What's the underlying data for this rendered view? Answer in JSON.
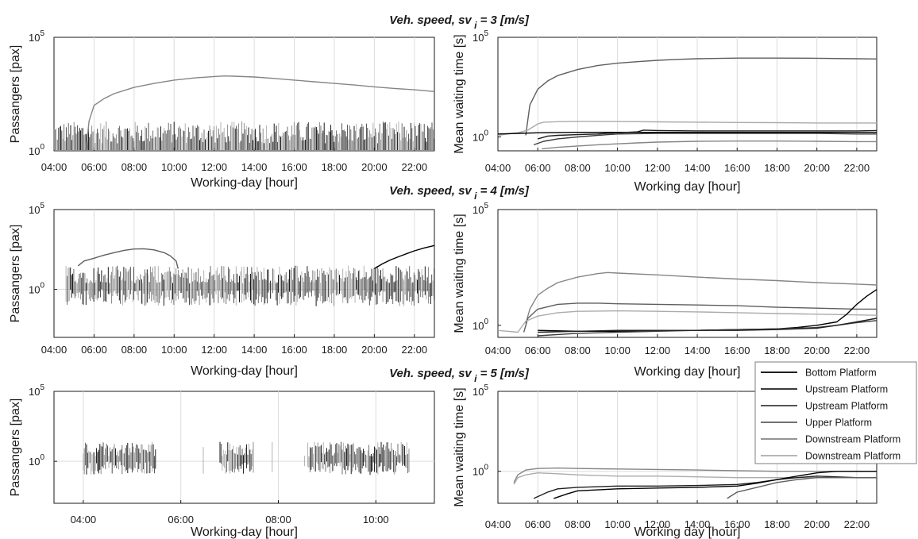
{
  "titles": [
    "Veh. speed, sv",
    "Veh. speed, sv",
    "Veh. speed, sv"
  ],
  "title_sub": "i",
  "title_values": [
    "= 3 [m/s]",
    "= 4 [m/s]",
    "= 5 [m/s]"
  ],
  "legend": {
    "entries": [
      {
        "label": "Bottom Platform",
        "color": "#000000"
      },
      {
        "label": "Upstream Platform",
        "color": "#1f1f1f"
      },
      {
        "label": "Upstream Platform",
        "color": "#3d3d3d"
      },
      {
        "label": "Upper Platform",
        "color": "#5e5e5e"
      },
      {
        "label": "Downstream Platform",
        "color": "#858585"
      },
      {
        "label": "Downstream Platform",
        "color": "#ababab"
      }
    ]
  },
  "chart_data": [
    {
      "type": "line",
      "panel": "left",
      "row": 1,
      "ylabel": "Passangers [pax]",
      "xlabel": "Working-day [hour]",
      "yscale": "log",
      "ylim": [
        1,
        100000
      ],
      "ytick_labels": [
        "10",
        "10"
      ],
      "ytick_exps": [
        "0",
        "5"
      ],
      "xlim": [
        4,
        23
      ],
      "xtick_values": [
        4,
        6,
        8,
        10,
        12,
        14,
        16,
        18,
        20,
        22
      ],
      "xtick_labels": [
        "04:00",
        "06:00",
        "08:00",
        "10:00",
        "12:00",
        "14:00",
        "16:00",
        "18:00",
        "20:00",
        "22:00"
      ],
      "grid": "vertical",
      "series": [
        {
          "color": "#858585",
          "x": [
            5.6,
            5.75,
            6.0,
            6.5,
            7.0,
            8.0,
            9.0,
            10.0,
            11.0,
            12.0,
            12.5,
            13.0,
            14.0,
            15.0,
            16.0,
            17.0,
            18.0,
            19.0,
            20.0,
            21.0,
            22.0,
            23.0
          ],
          "y": [
            1,
            20,
            100,
            200,
            330,
            620,
            930,
            1300,
            1620,
            1880,
            1980,
            1940,
            1780,
            1550,
            1300,
            1100,
            930,
            790,
            660,
            560,
            490,
            410
          ]
        }
      ],
      "noise": {
        "x_start": 4.0,
        "x_end": 23.0,
        "level": 1,
        "amplitude_decades": 1.3,
        "below": false
      }
    },
    {
      "type": "line",
      "panel": "right",
      "row": 1,
      "ylabel": "Mean waiting time [s]",
      "xlabel": "Working day [hour]",
      "yscale": "log",
      "ylim": [
        0.2,
        100000
      ],
      "ytick_labels": [
        "10",
        "10"
      ],
      "ytick_exps": [
        "0",
        "5"
      ],
      "xlim": [
        4,
        23
      ],
      "xtick_values": [
        4,
        6,
        8,
        10,
        12,
        14,
        16,
        18,
        20,
        22
      ],
      "xtick_labels": [
        "04:00",
        "06:00",
        "08:00",
        "10:00",
        "12:00",
        "14:00",
        "16:00",
        "18:00",
        "20:00",
        "22:00"
      ],
      "grid": "vertical",
      "series": [
        {
          "color": "#5e5e5e",
          "x": [
            5.4,
            5.6,
            6.0,
            6.5,
            7.0,
            8.0,
            9.0,
            10.0,
            11.0,
            12.0,
            13.0,
            14.0,
            16.0,
            18.0,
            20.0,
            22.0,
            23.0
          ],
          "y": [
            1.2,
            40,
            250,
            650,
            1200,
            2400,
            3800,
            5000,
            6000,
            7000,
            7800,
            8400,
            9000,
            9000,
            8900,
            8400,
            8200
          ]
        },
        {
          "color": "#ababab",
          "x": [
            4.0,
            5.0,
            5.5,
            6.0,
            6.3,
            7.0,
            8.0,
            10.0,
            12.0,
            14.0,
            16.0,
            18.0,
            20.0,
            22.0,
            23.0
          ],
          "y": [
            1.2,
            1.6,
            2.2,
            4.5,
            5.5,
            5.8,
            6.0,
            5.9,
            5.7,
            5.5,
            5.3,
            5.2,
            5.0,
            5.0,
            5.0
          ]
        },
        {
          "color": "#1f1f1f",
          "x": [
            6.0,
            6.5,
            7.0,
            8.0,
            9.0,
            10.0,
            11.0,
            11.3,
            12.0,
            14.0,
            16.0,
            18.0,
            20.0,
            22.0,
            23.0
          ],
          "y": [
            0.8,
            1.1,
            1.2,
            1.3,
            1.4,
            1.6,
            1.8,
            2.2,
            2.1,
            2.0,
            2.0,
            2.0,
            2.0,
            2.0,
            2.1
          ]
        },
        {
          "color": "#3d3d3d",
          "x": [
            5.8,
            6.3,
            7.0,
            8.0,
            9.0,
            10.0,
            12.0,
            14.0,
            16.0,
            18.0,
            20.0,
            22.0,
            23.0
          ],
          "y": [
            0.4,
            0.6,
            0.8,
            1.0,
            1.2,
            1.4,
            1.5,
            1.5,
            1.5,
            1.5,
            1.5,
            1.4,
            1.4
          ]
        },
        {
          "color": "#858585",
          "x": [
            6.2,
            7.0,
            8.0,
            9.0,
            10.0,
            11.0,
            12.0,
            14.0,
            16.0,
            18.0,
            20.0,
            22.0,
            23.0
          ],
          "y": [
            0.25,
            0.3,
            0.35,
            0.4,
            0.45,
            0.5,
            0.55,
            0.6,
            0.62,
            0.62,
            0.6,
            0.58,
            0.58
          ]
        },
        {
          "color": "#000000",
          "x": [
            4.0,
            5.0,
            6.0,
            8.0,
            10.0,
            12.0,
            14.0,
            16.0,
            18.0,
            20.0,
            22.0,
            23.0
          ],
          "y": [
            1.4,
            1.5,
            1.6,
            1.7,
            1.7,
            1.7,
            1.7,
            1.7,
            1.7,
            1.7,
            1.7,
            1.7
          ]
        }
      ]
    },
    {
      "type": "line",
      "panel": "left",
      "row": 2,
      "ylabel": "Passangers [pax]",
      "xlabel": "Working-day [hour]",
      "yscale": "log",
      "ylim": [
        0.001,
        100000
      ],
      "ytick_labels": [
        "10",
        "10"
      ],
      "ytick_exps": [
        "0",
        "5"
      ],
      "xlim": [
        4,
        23
      ],
      "xtick_values": [
        4,
        6,
        8,
        10,
        12,
        14,
        16,
        18,
        20,
        22
      ],
      "xtick_labels": [
        "04:00",
        "06:00",
        "08:00",
        "10:00",
        "12:00",
        "14:00",
        "16:00",
        "18:00",
        "20:00",
        "22:00"
      ],
      "grid": "both",
      "series": [
        {
          "color": "#5e5e5e",
          "x": [
            5.2,
            5.5,
            6.0,
            6.5,
            7.0,
            7.5,
            8.0,
            8.5,
            9.0,
            9.5,
            9.8,
            10.1,
            10.2
          ],
          "y": [
            30,
            60,
            90,
            140,
            200,
            280,
            340,
            350,
            300,
            200,
            130,
            60,
            20
          ]
        },
        {
          "color": "#000000",
          "x": [
            20.0,
            20.4,
            20.8,
            21.2,
            21.6,
            22.0,
            22.5,
            23.0
          ],
          "y": [
            20,
            40,
            70,
            110,
            170,
            260,
            400,
            560
          ]
        }
      ],
      "noise": {
        "x_start": 4.6,
        "x_end": 23.0,
        "level": 1,
        "amplitude_decades": 1.5,
        "below": true
      }
    },
    {
      "type": "line",
      "panel": "right",
      "row": 2,
      "ylabel": "Mean waiting time [s]",
      "xlabel": "Working day [hour]",
      "yscale": "log",
      "ylim": [
        0.3,
        100000
      ],
      "ytick_labels": [
        "10",
        "10"
      ],
      "ytick_exps": [
        "0",
        "5"
      ],
      "xlim": [
        4,
        23
      ],
      "xtick_values": [
        4,
        6,
        8,
        10,
        12,
        14,
        16,
        18,
        20,
        22
      ],
      "xtick_labels": [
        "04:00",
        "06:00",
        "08:00",
        "10:00",
        "12:00",
        "14:00",
        "16:00",
        "18:00",
        "20:00",
        "22:00"
      ],
      "grid": "vertical",
      "series": [
        {
          "color": "#858585",
          "x": [
            5.4,
            5.6,
            6.0,
            6.5,
            7.0,
            8.0,
            9.0,
            9.5,
            10.0,
            12.0,
            14.0,
            16.0,
            18.0,
            20.0,
            22.0,
            23.0
          ],
          "y": [
            1.2,
            5,
            20,
            40,
            70,
            120,
            170,
            190,
            180,
            150,
            120,
            100,
            85,
            70,
            60,
            55
          ]
        },
        {
          "color": "#5e5e5e",
          "x": [
            5.3,
            5.5,
            6.0,
            7.0,
            8.0,
            9.0,
            10.0,
            12.0,
            14.0,
            16.0,
            18.0,
            20.0,
            22.0,
            23.0
          ],
          "y": [
            0.5,
            2,
            5,
            8,
            9,
            9,
            8.5,
            8,
            7.5,
            7,
            6,
            5.5,
            5,
            5
          ]
        },
        {
          "color": "#ababab",
          "x": [
            4.0,
            5.0,
            5.4,
            6.0,
            7.0,
            8.0,
            10.0,
            12.0,
            14.0,
            16.0,
            18.0,
            20.0,
            22.0,
            23.0
          ],
          "y": [
            0.6,
            0.5,
            1.5,
            2.5,
            3.5,
            4,
            4.2,
            4,
            3.8,
            3.5,
            3.2,
            3,
            2.8,
            2.7
          ]
        },
        {
          "color": "#000000",
          "x": [
            6.0,
            8.0,
            10.0,
            12.0,
            14.0,
            16.0,
            18.0,
            19.0,
            20.0,
            21.0,
            21.5,
            22.0,
            22.5,
            23.0
          ],
          "y": [
            0.6,
            0.55,
            0.55,
            0.6,
            0.6,
            0.65,
            0.7,
            0.8,
            1.0,
            1.4,
            3,
            8,
            18,
            35
          ]
        },
        {
          "color": "#3d3d3d",
          "x": [
            6.0,
            7.0,
            8.0,
            10.0,
            12.0,
            14.0,
            16.0,
            18.0,
            20.0,
            21.0,
            22.0,
            23.0
          ],
          "y": [
            0.35,
            0.4,
            0.45,
            0.5,
            0.55,
            0.6,
            0.65,
            0.7,
            0.8,
            1.0,
            1.3,
            1.6
          ]
        },
        {
          "color": "#1f1f1f",
          "x": [
            6.0,
            8.0,
            10.0,
            12.0,
            14.0,
            16.0,
            18.0,
            20.0,
            21.0,
            22.0,
            23.0
          ],
          "y": [
            0.5,
            0.55,
            0.6,
            0.6,
            0.6,
            0.6,
            0.65,
            0.75,
            1.0,
            1.4,
            2.0
          ]
        }
      ]
    },
    {
      "type": "line",
      "panel": "left",
      "row": 3,
      "ylabel": "Passangers [pax]",
      "xlabel": "Working-day [hour]",
      "yscale": "log",
      "ylim": [
        0.001,
        100000
      ],
      "ytick_labels": [
        "10",
        "10"
      ],
      "ytick_exps": [
        "0",
        "5"
      ],
      "xlim": [
        3.4,
        11.2
      ],
      "xtick_values": [
        4,
        6,
        8,
        10
      ],
      "xtick_labels": [
        "04:00",
        "06:00",
        "08:00",
        "10:00"
      ],
      "grid": "both",
      "series": [],
      "noise": {
        "x_start": 4.0,
        "x_end": 10.7,
        "level": 1,
        "amplitude_decades": 1.4,
        "below": true,
        "gaps": [
          [
            5.5,
            6.8
          ],
          [
            7.5,
            8.6
          ]
        ]
      }
    },
    {
      "type": "line",
      "panel": "right",
      "row": 3,
      "ylabel": "Mean waiting time [s]",
      "xlabel": "Working day [hour]",
      "yscale": "log",
      "ylim": [
        0.01,
        100000
      ],
      "ytick_labels": [
        "10",
        "10"
      ],
      "ytick_exps": [
        "0",
        "5"
      ],
      "xlim": [
        4,
        23
      ],
      "xtick_values": [
        4,
        6,
        8,
        10,
        12,
        14,
        16,
        18,
        20,
        22
      ],
      "xtick_labels": [
        "04:00",
        "06:00",
        "08:00",
        "10:00",
        "12:00",
        "14:00",
        "16:00",
        "18:00",
        "20:00",
        "22:00"
      ],
      "grid": "both",
      "series": [
        {
          "color": "#858585",
          "x": [
            4.8,
            5.0,
            5.4,
            6.0,
            7.0,
            8.0,
            10.0,
            12.0,
            14.0,
            16.0,
            18.0,
            20.0,
            22.0,
            23.0
          ],
          "y": [
            0.2,
            0.6,
            1.2,
            1.5,
            1.6,
            1.5,
            1.4,
            1.3,
            1.2,
            1.1,
            1.0,
            1.0,
            1.0,
            1.0
          ]
        },
        {
          "color": "#ababab",
          "x": [
            4.8,
            5.0,
            5.4,
            6.0,
            7.0,
            8.0,
            10.0,
            12.0,
            14.0,
            16.0,
            18.0,
            20.0,
            22.0,
            23.0
          ],
          "y": [
            0.15,
            0.4,
            0.6,
            0.8,
            0.7,
            0.6,
            0.5,
            0.5,
            0.45,
            0.4,
            0.4,
            0.4,
            0.4,
            0.4
          ]
        },
        {
          "color": "#1f1f1f",
          "x": [
            5.8,
            6.5,
            7.0,
            8.0,
            10.0,
            12.0,
            14.0,
            16.0,
            17.0,
            18.0,
            19.0,
            20.0,
            22.0,
            23.0
          ],
          "y": [
            0.02,
            0.05,
            0.08,
            0.1,
            0.12,
            0.12,
            0.13,
            0.15,
            0.2,
            0.3,
            0.4,
            0.5,
            0.4,
            0.4
          ]
        },
        {
          "color": "#000000",
          "x": [
            6.8,
            7.5,
            8.0,
            10.0,
            12.0,
            14.0,
            16.0,
            17.0,
            18.0,
            19.0,
            20.0,
            21.0,
            22.0,
            23.0
          ],
          "y": [
            0.02,
            0.04,
            0.06,
            0.08,
            0.09,
            0.1,
            0.12,
            0.18,
            0.3,
            0.5,
            0.8,
            1.0,
            1.0,
            1.0
          ]
        },
        {
          "color": "#5e5e5e",
          "x": [
            15.5,
            16.0,
            17.0,
            18.0,
            19.0,
            20.0,
            21.0,
            22.0,
            23.0
          ],
          "y": [
            0.02,
            0.05,
            0.1,
            0.2,
            0.3,
            0.4,
            0.4,
            0.4,
            0.4
          ]
        }
      ]
    }
  ]
}
